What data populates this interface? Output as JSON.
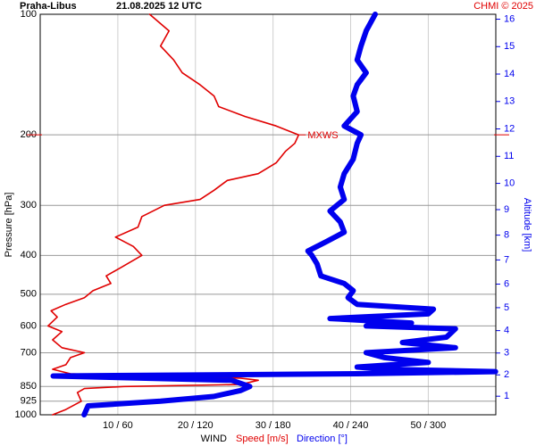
{
  "chart_data": {
    "type": "line",
    "title": "Praha-Libus",
    "subtitle": "21.08.2025 12 UTC",
    "credit": "CHMI © 2025",
    "ylabel": "Pressure [hPa]",
    "y2label": "Altitude [km]",
    "xlabel": "WIND",
    "log_y": true,
    "grid": true,
    "ylim": [
      1000,
      100
    ],
    "yticks": [
      100,
      200,
      300,
      400,
      500,
      600,
      700,
      850,
      925,
      1000
    ],
    "xlim": [
      0,
      58.7
    ],
    "x2lim": [
      0,
      352.2
    ],
    "xticks": [
      {
        "value": 10,
        "label": "10 / 60"
      },
      {
        "value": 20,
        "label": "20 / 120"
      },
      {
        "value": 30,
        "label": "30 / 180"
      },
      {
        "value": 40,
        "label": "40 / 240"
      },
      {
        "value": 50,
        "label": "50 / 300"
      }
    ],
    "y2ticks": [
      1,
      2,
      3,
      4,
      5,
      6,
      7,
      8,
      9,
      10,
      11,
      12,
      13,
      14,
      15,
      16
    ],
    "annotation": "MXWS",
    "series": [
      {
        "name": "Speed [m/s]",
        "color": "#e00000",
        "y": [
          1000,
          970,
          925,
          880,
          860,
          850,
          840,
          820,
          810,
          800,
          790,
          770,
          750,
          720,
          700,
          680,
          650,
          620,
          600,
          570,
          550,
          530,
          510,
          490,
          470,
          450,
          430,
          400,
          380,
          360,
          340,
          320,
          300,
          290,
          275,
          260,
          250,
          235,
          220,
          210,
          200,
          190,
          180,
          170,
          160,
          150,
          140,
          130,
          120,
          110,
          100
        ],
        "values": [
          1.6,
          3.3,
          5.3,
          4.8,
          5.7,
          10.8,
          25.8,
          28.1,
          25.8,
          12,
          3.9,
          1.6,
          3.3,
          3.9,
          5.7,
          2.8,
          1.6,
          2.8,
          1,
          2.2,
          1.4,
          3.3,
          5.7,
          6.8,
          9.1,
          8.5,
          10.3,
          13.1,
          12,
          9.7,
          12.6,
          13.1,
          16,
          20.6,
          22.4,
          24.1,
          28.1,
          30.4,
          31.6,
          32.8,
          33.3,
          30.4,
          26.4,
          23,
          22.4,
          20.6,
          18.3,
          17.2,
          15.5,
          16.6,
          14.1
        ]
      },
      {
        "name": "Direction [°]",
        "color": "#0000ee",
        "axis": "x2",
        "y": [
          1000,
          950,
          925,
          900,
          870,
          850,
          820,
          800,
          790,
          780,
          770,
          760,
          740,
          720,
          700,
          680,
          660,
          640,
          610,
          600,
          590,
          575,
          560,
          545,
          530,
          510,
          490,
          470,
          450,
          420,
          400,
          390,
          370,
          350,
          330,
          310,
          290,
          270,
          250,
          230,
          210,
          200,
          190,
          175,
          160,
          150,
          140,
          130,
          120,
          110,
          100
        ],
        "values": [
          34,
          37,
          93,
          134,
          155,
          162,
          148,
          10,
          245,
          352,
          266,
          245,
          300,
          266,
          252,
          321,
          280,
          314,
          321,
          252,
          287,
          224,
          300,
          304,
          245,
          238,
          242,
          235,
          217,
          214,
          210,
          207,
          221,
          235,
          232,
          224,
          235,
          232,
          235,
          242,
          245,
          248,
          235,
          245,
          242,
          245,
          252,
          245,
          248,
          252,
          259
        ]
      }
    ]
  }
}
